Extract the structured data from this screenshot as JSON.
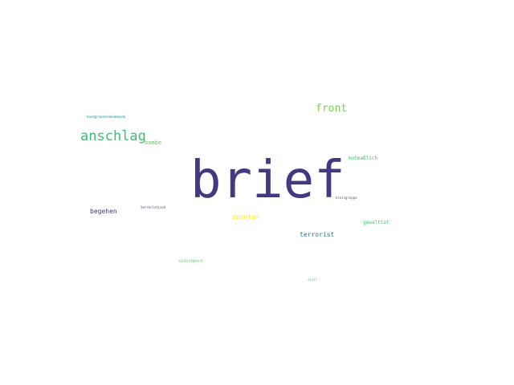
{
  "words": [
    {
      "text": "brief",
      "color": "#453781"
    },
    {
      "text": "anschlag",
      "color": "#3dbc74"
    },
    {
      "text": "front",
      "color": "#7ad151"
    },
    {
      "text": "bombe",
      "color": "#5ec962"
    },
    {
      "text": "begehen",
      "color": "#46337e"
    },
    {
      "text": "spontan",
      "color": "#fde725"
    },
    {
      "text": "terrorist",
      "color": "#2c728e"
    },
    {
      "text": "gewalttat",
      "color": "#4ac16d"
    },
    {
      "text": "mutmaßlich",
      "color": "#40bd72"
    },
    {
      "text": "kleingruppe",
      "color": "#39568c"
    },
    {
      "text": "terroristisch",
      "color": "#472d7b"
    },
    {
      "text": "selbstmord",
      "color": "#5ec962"
    },
    {
      "text": "zivil",
      "color": "#3fbc73"
    },
    {
      "text": "handgranatenkommando",
      "color": "#21918c"
    }
  ]
}
